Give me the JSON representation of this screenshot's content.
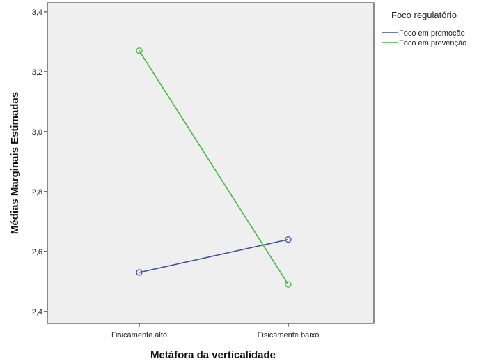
{
  "chart_data": {
    "type": "line",
    "title": "",
    "xlabel": "Metáfora da verticalidade",
    "ylabel": "Médias Marginais Estimadas",
    "categories": [
      "Fisicamente alto",
      "Fisicamente baixo"
    ],
    "ylim": [
      2.36,
      3.43
    ],
    "yticks": [
      2.4,
      2.6,
      2.8,
      3.0,
      3.2,
      3.4
    ],
    "ytick_labels": [
      "2,4",
      "2,6",
      "2,8",
      "3,0",
      "3,2",
      "3,4"
    ],
    "legend_title": "Foco regulatório",
    "legend_position": "top-right outside",
    "grid": false,
    "plot_background": "#efefef",
    "series": [
      {
        "name": "Foco em promoção",
        "values": [
          2.53,
          2.64
        ],
        "color": "#3d52a1",
        "marker": "circle"
      },
      {
        "name": "Foco em prevenção",
        "values": [
          3.27,
          2.49
        ],
        "color": "#3dbb3d",
        "marker": "circle"
      }
    ]
  }
}
